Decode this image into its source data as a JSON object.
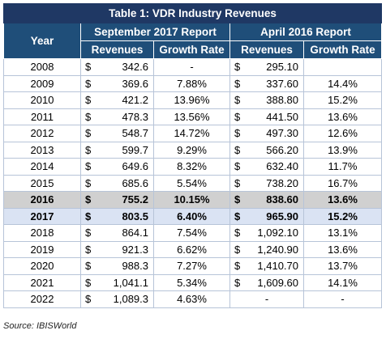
{
  "table": {
    "title": "Table 1: VDR Industry Revenues",
    "year_header": "Year",
    "group_a": "September 2017 Report",
    "group_b": "April 2016 Report",
    "col_rev": "Revenues",
    "col_growth": "Growth Rate",
    "currency": "$",
    "rows": [
      {
        "year": "2008",
        "rev_a": "342.6",
        "gr_a": "-",
        "rev_b": "295.10",
        "gr_b": ""
      },
      {
        "year": "2009",
        "rev_a": "369.6",
        "gr_a": "7.88%",
        "rev_b": "337.60",
        "gr_b": "14.4%"
      },
      {
        "year": "2010",
        "rev_a": "421.2",
        "gr_a": "13.96%",
        "rev_b": "388.80",
        "gr_b": "15.2%"
      },
      {
        "year": "2011",
        "rev_a": "478.3",
        "gr_a": "13.56%",
        "rev_b": "441.50",
        "gr_b": "13.6%"
      },
      {
        "year": "2012",
        "rev_a": "548.7",
        "gr_a": "14.72%",
        "rev_b": "497.30",
        "gr_b": "12.6%"
      },
      {
        "year": "2013",
        "rev_a": "599.7",
        "gr_a": "9.29%",
        "rev_b": "566.20",
        "gr_b": "13.9%"
      },
      {
        "year": "2014",
        "rev_a": "649.6",
        "gr_a": "8.32%",
        "rev_b": "632.40",
        "gr_b": "11.7%"
      },
      {
        "year": "2015",
        "rev_a": "685.6",
        "gr_a": "5.54%",
        "rev_b": "738.20",
        "gr_b": "16.7%"
      },
      {
        "year": "2016",
        "rev_a": "755.2",
        "gr_a": "10.15%",
        "rev_b": "838.60",
        "gr_b": "13.6%"
      },
      {
        "year": "2017",
        "rev_a": "803.5",
        "gr_a": "6.40%",
        "rev_b": "965.90",
        "gr_b": "15.2%"
      },
      {
        "year": "2018",
        "rev_a": "864.1",
        "gr_a": "7.54%",
        "rev_b": "1,092.10",
        "gr_b": "13.1%"
      },
      {
        "year": "2019",
        "rev_a": "921.3",
        "gr_a": "6.62%",
        "rev_b": "1,240.90",
        "gr_b": "13.6%"
      },
      {
        "year": "2020",
        "rev_a": "988.3",
        "gr_a": "7.27%",
        "rev_b": "1,410.70",
        "gr_b": "13.7%"
      },
      {
        "year": "2021",
        "rev_a": "1,041.1",
        "gr_a": "5.34%",
        "rev_b": "1,609.60",
        "gr_b": "14.1%"
      },
      {
        "year": "2022",
        "rev_a": "1,089.3",
        "gr_a": "4.63%",
        "rev_b": "-",
        "gr_b": "-"
      }
    ]
  },
  "highlight_colors": {
    "2016": "#d0d0d0",
    "2017": "#dae3f3"
  },
  "source": "Source: IBISWorld"
}
